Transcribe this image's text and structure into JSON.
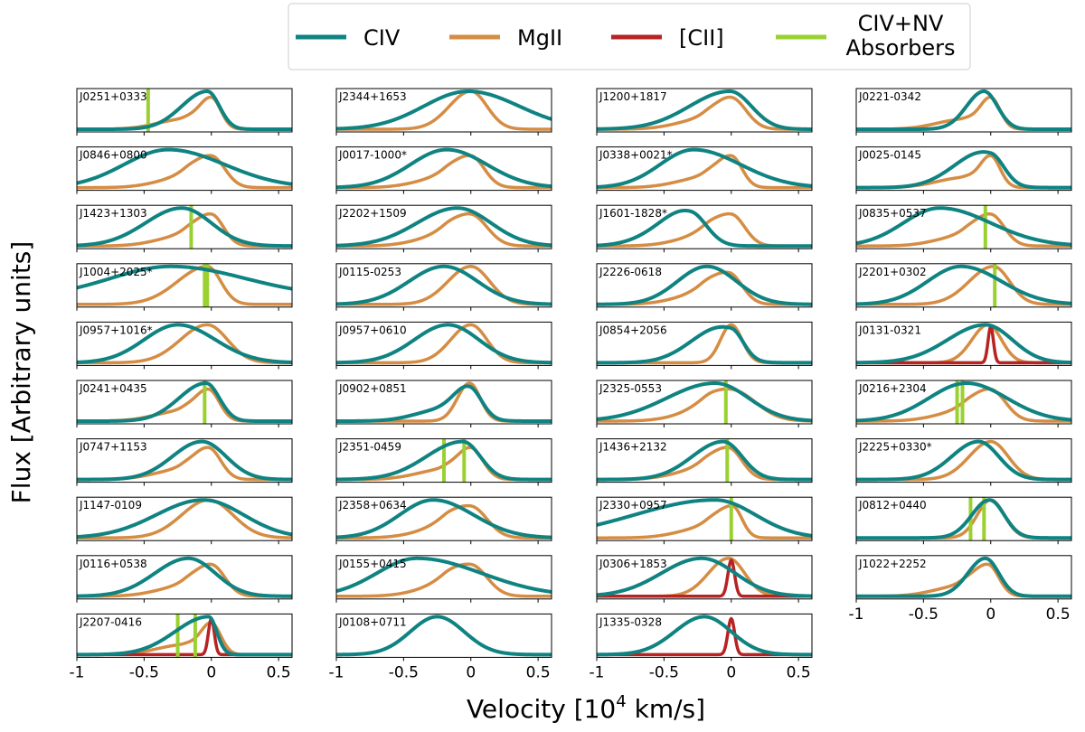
{
  "chart_data": {
    "type": "line",
    "description_axis": {
      "xlabel": "Velocity [10",
      "xlabel_sup": "4",
      "xlabel_end": " km/s]",
      "ylabel": "Flux [Arbitrary units]",
      "xlim": [
        -1,
        0.6
      ],
      "xticks": [
        -1,
        -0.5,
        0,
        0.5
      ],
      "xtick_labels": [
        "-1",
        "-0.5",
        "0",
        "0.5"
      ]
    },
    "legend": [
      {
        "name": "CIV",
        "lines": [
          "CIV"
        ],
        "color": "#0f8381"
      },
      {
        "name": "MgII",
        "lines": [
          "MgII"
        ],
        "color": "#d58c43"
      },
      {
        "name": "[CII]",
        "lines": [
          "[CII]"
        ],
        "color": "#b72323"
      },
      {
        "name": "CIV+NV Absorbers",
        "lines": [
          "CIV+NV",
          "Absorbers"
        ],
        "color": "#9ad131"
      }
    ],
    "columns": [
      {
        "panels": [
          {
            "name": "J0251+0333",
            "civ": {
              "c": -0.03,
              "sl": 0.19,
              "sr": 0.09
            },
            "mg": {
              "c": 0.0,
              "sl": 0.09,
              "sr": 0.07,
              "sh": true
            },
            "abs": [
              -0.47
            ]
          },
          {
            "name": "J0846+0800",
            "civ": {
              "c": -0.32,
              "sl": 0.33,
              "sr": 0.42
            },
            "mg": {
              "c": 0.0,
              "sl": 0.13,
              "sr": 0.1,
              "sh": true
            }
          },
          {
            "name": "J1423+1303",
            "civ": {
              "c": -0.22,
              "sl": 0.27,
              "sr": 0.22
            },
            "mg": {
              "c": 0.0,
              "sl": 0.12,
              "sr": 0.09,
              "sh": true
            },
            "abs": [
              -0.15
            ]
          },
          {
            "name": "J1004+2025*",
            "civ": {
              "c": -0.3,
              "sl": 0.45,
              "sr": 0.55,
              "base": 0.2
            },
            "mg": {
              "c": -0.03,
              "sl": 0.22,
              "sr": 0.1
            },
            "abs": [
              -0.05,
              -0.03
            ]
          },
          {
            "name": "J0957+1016*",
            "civ": {
              "c": -0.25,
              "sl": 0.25,
              "sr": 0.28
            },
            "mg": {
              "c": -0.03,
              "sl": 0.2,
              "sr": 0.15
            }
          },
          {
            "name": "J0241+0435",
            "civ": {
              "c": -0.04,
              "sl": 0.2,
              "sr": 0.1
            },
            "mg": {
              "c": -0.02,
              "sl": 0.1,
              "sr": 0.08,
              "sh": true
            },
            "abs": [
              -0.05
            ]
          },
          {
            "name": "J0747+1153",
            "civ": {
              "c": -0.07,
              "sl": 0.22,
              "sr": 0.18
            },
            "mg": {
              "c": -0.02,
              "sl": 0.11,
              "sr": 0.09,
              "sh": true
            }
          },
          {
            "name": "J1147-0109",
            "civ": {
              "c": -0.06,
              "sl": 0.35,
              "sr": 0.3
            },
            "mg": {
              "c": -0.02,
              "sl": 0.2,
              "sr": 0.18
            }
          },
          {
            "name": "J0116+0538",
            "civ": {
              "c": -0.17,
              "sl": 0.25,
              "sr": 0.2
            },
            "mg": {
              "c": 0.0,
              "sl": 0.12,
              "sr": 0.1,
              "sh": true
            }
          },
          {
            "name": "J2207-0416",
            "civ": {
              "c": -0.02,
              "sl": 0.25,
              "sr": 0.06
            },
            "mg": {
              "c": 0.0,
              "sl": 0.08,
              "sr": 0.07,
              "sh": true
            },
            "cii": {
              "c": 0.0,
              "s": 0.022
            },
            "abs": [
              -0.25,
              -0.12
            ]
          }
        ]
      },
      {
        "panels": [
          {
            "name": "J2344+1653",
            "civ": {
              "c": -0.02,
              "sl": 0.33,
              "sr": 0.38
            },
            "mg": {
              "c": 0.0,
              "sl": 0.16,
              "sr": 0.12
            }
          },
          {
            "name": "J0017-1000*",
            "civ": {
              "c": -0.18,
              "sl": 0.27,
              "sr": 0.3
            },
            "mg": {
              "c": 0.0,
              "sl": 0.13,
              "sr": 0.1,
              "sh": true
            }
          },
          {
            "name": "J2202+1509",
            "civ": {
              "c": -0.1,
              "sl": 0.3,
              "sr": 0.25
            },
            "mg": {
              "c": 0.0,
              "sl": 0.14,
              "sr": 0.12,
              "sh": true
            }
          },
          {
            "name": "J0115-0253",
            "civ": {
              "c": -0.2,
              "sl": 0.26,
              "sr": 0.25
            },
            "mg": {
              "c": 0.0,
              "sl": 0.17,
              "sr": 0.14
            }
          },
          {
            "name": "J0957+0610",
            "civ": {
              "c": -0.17,
              "sl": 0.25,
              "sr": 0.23
            },
            "mg": {
              "c": 0.0,
              "sl": 0.15,
              "sr": 0.12
            }
          },
          {
            "name": "J0902+0851",
            "civ": {
              "c": -0.01,
              "sl": 0.11,
              "sr": 0.09,
              "sh": true
            },
            "mg": {
              "c": -0.01,
              "sl": 0.09,
              "sr": 0.08
            }
          },
          {
            "name": "J2351-0459",
            "civ": {
              "c": -0.06,
              "sl": 0.27,
              "sr": 0.13
            },
            "mg": {
              "c": 0.0,
              "sl": 0.1,
              "sr": 0.09,
              "sh": true
            },
            "abs": [
              -0.2,
              -0.05
            ]
          },
          {
            "name": "J2358+0634",
            "civ": {
              "c": -0.28,
              "sl": 0.25,
              "sr": 0.3
            },
            "mg": {
              "c": 0.0,
              "sl": 0.15,
              "sr": 0.12,
              "sh": true
            }
          },
          {
            "name": "J0155+0415",
            "civ": {
              "c": -0.4,
              "sl": 0.3,
              "sr": 0.48
            },
            "mg": {
              "c": 0.0,
              "sl": 0.15,
              "sr": 0.12,
              "sh": true
            }
          },
          {
            "name": "J0108+0711",
            "civ": {
              "c": -0.25,
              "sl": 0.2,
              "sr": 0.2
            }
          }
        ]
      },
      {
        "panels": [
          {
            "name": "J1200+1817",
            "civ": {
              "c": -0.01,
              "sl": 0.3,
              "sr": 0.16
            },
            "mg": {
              "c": 0.0,
              "sl": 0.12,
              "sr": 0.11,
              "sh": true
            }
          },
          {
            "name": "J0338+0021*",
            "civ": {
              "c": -0.28,
              "sl": 0.25,
              "sr": 0.35
            },
            "mg": {
              "c": 0.0,
              "sl": 0.11,
              "sr": 0.08,
              "sh": true
            }
          },
          {
            "name": "J1601-1828*",
            "civ": {
              "c": -0.3,
              "sl": 0.18,
              "sr": 0.12,
              "sh": true
            },
            "mg": {
              "c": 0.0,
              "sl": 0.14,
              "sr": 0.1,
              "sh": true
            }
          },
          {
            "name": "J2226-0618",
            "civ": {
              "c": -0.18,
              "sl": 0.22,
              "sr": 0.22
            },
            "mg": {
              "c": -0.02,
              "sl": 0.14,
              "sr": 0.1,
              "sh": true
            }
          },
          {
            "name": "J0854+2056",
            "civ": {
              "c": 0.0,
              "sl": 0.22,
              "sr": 0.09,
              "sh": true
            },
            "mg": {
              "c": 0.0,
              "sl": 0.08,
              "sr": 0.08
            }
          },
          {
            "name": "J2325-0553",
            "civ": {
              "c": -0.12,
              "sl": 0.36,
              "sr": 0.25
            },
            "mg": {
              "c": 0.0,
              "sl": 0.16,
              "sr": 0.18,
              "sh": true
            },
            "abs": [
              -0.04
            ]
          },
          {
            "name": "J1436+2132",
            "civ": {
              "c": -0.06,
              "sl": 0.23,
              "sr": 0.14
            },
            "mg": {
              "c": -0.02,
              "sl": 0.13,
              "sr": 0.1,
              "sh": true
            },
            "abs": [
              -0.03
            ]
          },
          {
            "name": "J2330+0957",
            "civ": {
              "c": -0.12,
              "sl": 0.6,
              "sr": 0.3
            },
            "mg": {
              "c": 0.01,
              "sl": 0.12,
              "sr": 0.07,
              "sh": true
            },
            "abs": [
              0.0
            ]
          },
          {
            "name": "J0306+1853",
            "civ": {
              "c": -0.22,
              "sl": 0.3,
              "sr": 0.25
            },
            "mg": {
              "c": -0.02,
              "sl": 0.15,
              "sr": 0.12
            },
            "cii": {
              "c": 0.0,
              "s": 0.025
            }
          },
          {
            "name": "J1335-0328",
            "civ": {
              "c": -0.2,
              "sl": 0.22,
              "sr": 0.2
            },
            "cii": {
              "c": 0.0,
              "s": 0.025
            }
          }
        ]
      },
      {
        "panels": [
          {
            "name": "J0221-0342",
            "civ": {
              "c": -0.05,
              "sl": 0.13,
              "sr": 0.1
            },
            "mg": {
              "c": 0.0,
              "sl": 0.08,
              "sr": 0.07,
              "sh": true
            }
          },
          {
            "name": "J0025-0145",
            "civ": {
              "c": 0.0,
              "sl": 0.2,
              "sr": 0.1,
              "sh": true
            },
            "mg": {
              "c": 0.0,
              "sl": 0.08,
              "sr": 0.07,
              "sh": true
            }
          },
          {
            "name": "J0835+0537",
            "civ": {
              "c": -0.38,
              "sl": 0.27,
              "sr": 0.38
            },
            "mg": {
              "c": 0.0,
              "sl": 0.12,
              "sr": 0.1,
              "sh": true
            },
            "abs": [
              -0.04
            ]
          },
          {
            "name": "J2201+0302",
            "civ": {
              "c": -0.22,
              "sl": 0.25,
              "sr": 0.3
            },
            "mg": {
              "c": 0.02,
              "sl": 0.18,
              "sr": 0.12
            },
            "abs": [
              0.03
            ]
          },
          {
            "name": "J0131-0321",
            "civ": {
              "c": -0.04,
              "sl": 0.28,
              "sr": 0.2
            },
            "mg": {
              "c": -0.02,
              "sl": 0.12,
              "sr": 0.1
            },
            "cii": {
              "c": 0.0,
              "s": 0.02
            }
          },
          {
            "name": "J0216+2304",
            "civ": {
              "c": -0.18,
              "sl": 0.28,
              "sr": 0.3
            },
            "mg": {
              "c": 0.0,
              "sl": 0.13,
              "sr": 0.11,
              "sh": true
            },
            "abs": [
              -0.25,
              -0.21
            ]
          },
          {
            "name": "J2225+0330*",
            "civ": {
              "c": -0.09,
              "sl": 0.2,
              "sr": 0.15
            },
            "mg": {
              "c": 0.0,
              "sl": 0.16,
              "sr": 0.13
            }
          },
          {
            "name": "J0812+0440",
            "civ": {
              "c": -0.01,
              "sl": 0.13,
              "sr": 0.11
            },
            "mg": {
              "c": 0.0,
              "sl": 0.1,
              "sr": 0.1
            },
            "abs": [
              -0.15,
              -0.05
            ]
          },
          {
            "name": "J1022+2252",
            "civ": {
              "c": -0.04,
              "sl": 0.13,
              "sr": 0.1
            },
            "mg": {
              "c": -0.02,
              "sl": 0.11,
              "sr": 0.08,
              "sh": true
            }
          }
        ]
      }
    ]
  }
}
